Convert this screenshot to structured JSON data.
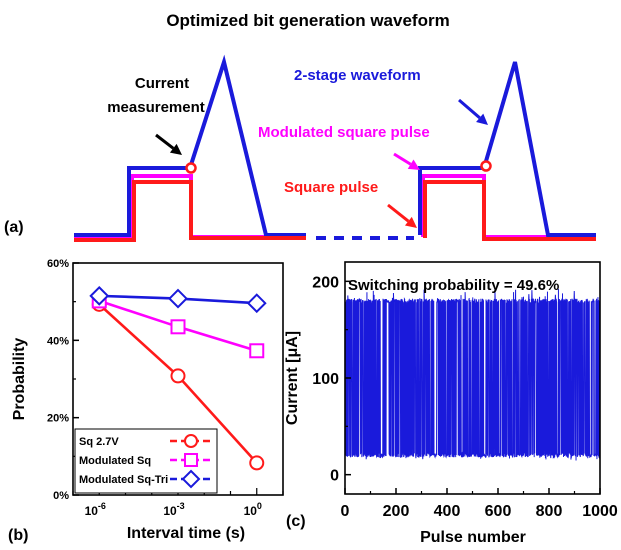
{
  "figure_title": "Optimized bit generation waveform",
  "colors": {
    "blue": "#1a1adb",
    "magenta": "#ff00ff",
    "red": "#ff1a1a",
    "black": "#000000"
  },
  "chart_data": [
    {
      "panel": "(a)",
      "type": "line",
      "annotations": {
        "current_measurement_line1": "Current",
        "current_measurement_line2": "measurement",
        "two_stage": "2-stage waveform",
        "modulated": "Modulated square pulse",
        "square": "Square pulse"
      },
      "series": [
        {
          "name": "2-stage waveform",
          "color": "#1a1adb"
        },
        {
          "name": "Modulated square pulse",
          "color": "#ff00ff"
        },
        {
          "name": "Square pulse",
          "color": "#ff1a1a"
        }
      ]
    },
    {
      "panel": "(b)",
      "type": "line",
      "xlabel": "Interval time (s)",
      "ylabel": "Probability",
      "xscale": "log",
      "xlim": [
        1e-07,
        10
      ],
      "ylim": [
        0,
        60
      ],
      "x_ticks": [
        {
          "base": "10",
          "exp": "-6",
          "value": 1e-06
        },
        {
          "base": "10",
          "exp": "-3",
          "value": 0.001
        },
        {
          "base": "10",
          "exp": "0",
          "value": 1
        }
      ],
      "y_ticks": [
        {
          "label": "0%",
          "value": 0
        },
        {
          "label": "20%",
          "value": 20
        },
        {
          "label": "40%",
          "value": 40
        },
        {
          "label": "60%",
          "value": 60
        }
      ],
      "legend_position": "bottom-left",
      "x": [
        1e-06,
        0.001,
        1
      ],
      "series": [
        {
          "name": "Sq 2.7V",
          "color": "#ff1a1a",
          "marker": "circle",
          "values": [
            49.3,
            30.8,
            8.3
          ]
        },
        {
          "name": "Modulated Sq",
          "color": "#ff00ff",
          "marker": "square",
          "values": [
            50.2,
            43.5,
            37.3
          ]
        },
        {
          "name": "Modulated Sq-Tri",
          "color": "#1a1adb",
          "marker": "diamond",
          "values": [
            51.5,
            50.8,
            49.6
          ]
        }
      ]
    },
    {
      "panel": "(c)",
      "type": "line",
      "xlabel": "Pulse number",
      "ylabel": "Current [μA]",
      "xlim": [
        0,
        1000
      ],
      "ylim": [
        -20,
        220
      ],
      "x_ticks": [
        0,
        200,
        400,
        600,
        800,
        1000
      ],
      "y_ticks": [
        0,
        100,
        200
      ],
      "annotation": "Switching probability = 49.6%",
      "series": [
        {
          "name": "Current",
          "color": "#1a1adb",
          "high_level_uA": 180,
          "low_level_uA": 20,
          "pulses": 1000,
          "switching_probability": 49.6
        }
      ]
    }
  ],
  "panel_labels": {
    "a": "(a)",
    "b": "(b)",
    "c": "(c)"
  }
}
